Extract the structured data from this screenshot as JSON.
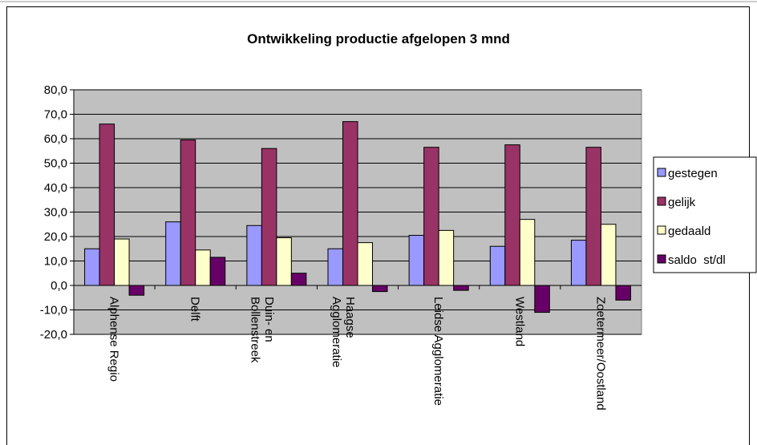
{
  "chart_data": {
    "type": "bar",
    "title": "Ontwikkeling productie afgelopen 3 mnd",
    "categories": [
      "Alphense Regio",
      "Delft",
      "Duin- en\nBollenstreek",
      "Haagse\nAgglomeratie",
      "Leidse Agglomeratie",
      "Westland",
      "Zoetermeer/Oostland"
    ],
    "series": [
      {
        "name": "gestegen",
        "color": "#9999ff",
        "values": [
          15,
          26,
          24.5,
          15,
          20.5,
          16,
          18.5
        ]
      },
      {
        "name": "gelijk",
        "color": "#993366",
        "values": [
          66,
          59.5,
          56,
          67,
          56.5,
          57.5,
          56.5
        ]
      },
      {
        "name": "gedaald",
        "color": "#ffffcc",
        "values": [
          19,
          14.5,
          19.5,
          17.5,
          22.5,
          27,
          25
        ]
      },
      {
        "name": "saldo  st/dl",
        "color": "#660066",
        "values": [
          -4,
          11.5,
          5,
          -2.5,
          -2,
          -11,
          -6
        ]
      }
    ],
    "ylim": [
      -20,
      80
    ],
    "yticks": [
      {
        "value": -20,
        "label": "-20,0"
      },
      {
        "value": -10,
        "label": "-10,0"
      },
      {
        "value": 0,
        "label": "0,0"
      },
      {
        "value": 10,
        "label": "10,0"
      },
      {
        "value": 20,
        "label": "20,0"
      },
      {
        "value": 30,
        "label": "30,0"
      },
      {
        "value": 40,
        "label": "40,0"
      },
      {
        "value": 50,
        "label": "50,0"
      },
      {
        "value": 60,
        "label": "60,0"
      },
      {
        "value": 70,
        "label": "70,0"
      },
      {
        "value": 80,
        "label": "80,0"
      }
    ],
    "grid": true,
    "legend": "right"
  }
}
